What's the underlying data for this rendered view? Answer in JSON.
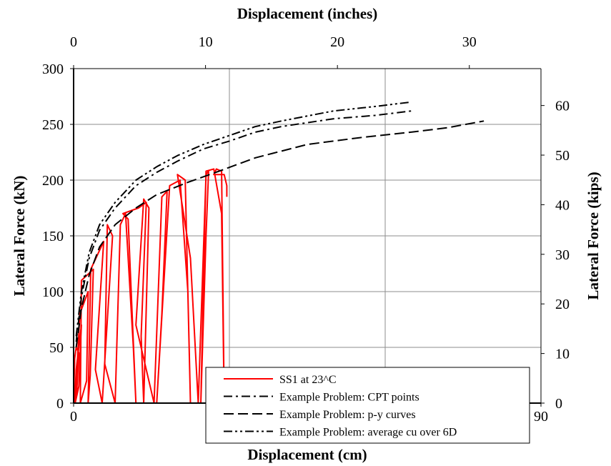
{
  "chart_data": {
    "type": "line",
    "xlabel": "Displacement (cm)",
    "ylabel": "Lateral Force (kN)",
    "x2label": "Displacement (inches)",
    "y2label": "Lateral Force (kips)",
    "xlim": [
      0,
      90
    ],
    "ylim": [
      0,
      300
    ],
    "x2lim": [
      0,
      35.43
    ],
    "y2lim": [
      0,
      67.44
    ],
    "xticks": [
      0,
      30,
      60,
      90
    ],
    "yticks": [
      0,
      50,
      100,
      150,
      200,
      250,
      300
    ],
    "x2ticks": [
      0,
      10,
      20,
      30
    ],
    "y2ticks": [
      0,
      10,
      20,
      30,
      40,
      50,
      60
    ],
    "grid": true,
    "legend_position": "bottom-right",
    "series": [
      {
        "name": "SS1 at 23^C",
        "color": "#ff0000",
        "style": "solid",
        "x": [
          0,
          0.2,
          0.5,
          1.0,
          0.6,
          0.2,
          0.5,
          1.5,
          1.0,
          0.3,
          1.2,
          2.8,
          2.5,
          1.3,
          1.5,
          3.8,
          3.2,
          2.8,
          3.3,
          5.8,
          4.2,
          5.5,
          7.5,
          6.5,
          6.0,
          8.0,
          9.0,
          10.0,
          11.5,
          12.0,
          10.5,
          9.5,
          12.5,
          14.0,
          13.0,
          13.5,
          14.5,
          13.5,
          12.0,
          15.5,
          17.0,
          18.0,
          17.0,
          16.0,
          18.5,
          20.5,
          22.0,
          22.5,
          21.5,
          20.0,
          22.5,
          24.0,
          25.5,
          26.0,
          25.5,
          24.5,
          25.5,
          27.0,
          28.5,
          29.0,
          28.5,
          27.5,
          27.0,
          28.0,
          29.0,
          29.5,
          29.5
        ],
        "y": [
          0,
          40,
          50,
          45,
          10,
          0,
          30,
          70,
          15,
          0,
          80,
          100,
          20,
          0,
          110,
          120,
          25,
          0,
          120,
          145,
          30,
          0,
          150,
          160,
          35,
          0,
          160,
          170,
          50,
          0,
          165,
          170,
          175,
          180,
          60,
          0,
          175,
          183,
          70,
          0,
          185,
          190,
          80,
          0,
          195,
          200,
          100,
          0,
          200,
          205,
          130,
          0,
          205,
          208,
          150,
          0,
          208,
          210,
          170,
          0,
          208,
          210,
          205,
          205,
          205,
          195,
          185
        ]
      },
      {
        "name": "Example Problem: CPT points",
        "color": "#000000",
        "style": "dashdot",
        "x": [
          0.5,
          1.5,
          3,
          5,
          8,
          12,
          16,
          20,
          25,
          30,
          35,
          40,
          50,
          58,
          65
        ],
        "y": [
          55,
          95,
          130,
          155,
          175,
          195,
          207,
          217,
          228,
          235,
          243,
          248,
          255,
          258,
          262
        ]
      },
      {
        "name": "Example Problem: p-y curves",
        "color": "#000000",
        "style": "dashed",
        "x": [
          0.5,
          1.5,
          3,
          5,
          8,
          12,
          16,
          22,
          28,
          35,
          45,
          55,
          65,
          72,
          79
        ],
        "y": [
          50,
          85,
          115,
          140,
          160,
          175,
          187,
          198,
          208,
          220,
          232,
          238,
          243,
          247,
          253
        ]
      },
      {
        "name": "Example Problem: average cu over 6D",
        "color": "#000000",
        "style": "dashdotdot",
        "x": [
          0.5,
          1.5,
          3,
          5,
          8,
          12,
          16,
          20,
          25,
          30,
          35,
          40,
          50,
          58,
          65
        ],
        "y": [
          60,
          100,
          135,
          160,
          180,
          200,
          212,
          222,
          232,
          240,
          248,
          253,
          262,
          266,
          270
        ]
      }
    ]
  }
}
